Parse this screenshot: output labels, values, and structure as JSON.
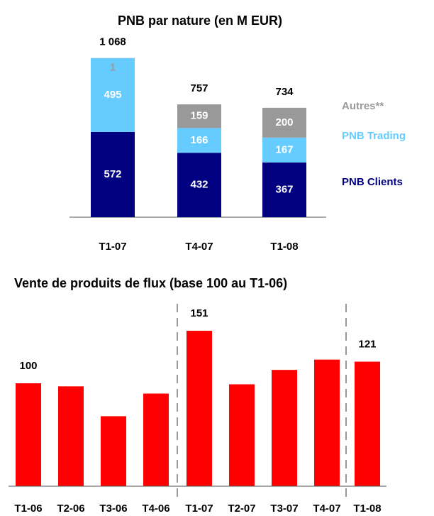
{
  "charts": [
    {
      "type": "stacked_bar",
      "title": "PNB par nature (en M EUR)",
      "categories": [
        "T1-07",
        "T4-07",
        "T1-08"
      ],
      "series": [
        {
          "name": "PNB Clients",
          "color": "#000080",
          "values": [
            572,
            432,
            367
          ]
        },
        {
          "name": "PNB Trading",
          "color": "#66ccff",
          "values": [
            495,
            166,
            167
          ]
        },
        {
          "name": "Autres**",
          "color": "#999999",
          "values": [
            1,
            159,
            200
          ]
        }
      ],
      "totals": [
        1068,
        757,
        734
      ],
      "total_labels": [
        "1 068",
        "757",
        "734"
      ]
    },
    {
      "type": "bar",
      "title": "Vente de produits de flux (base 100 au T1-06)",
      "categories": [
        "T1-06",
        "T2-06",
        "T3-06",
        "T4-06",
        "T1-07",
        "T2-07",
        "T3-07",
        "T4-07",
        "T1-08"
      ],
      "values": [
        100,
        97,
        68,
        90,
        151,
        99,
        113,
        123,
        121
      ],
      "value_labels": [
        "100",
        null,
        null,
        null,
        "151",
        null,
        null,
        null,
        "121"
      ],
      "color": "#ff0000"
    }
  ]
}
